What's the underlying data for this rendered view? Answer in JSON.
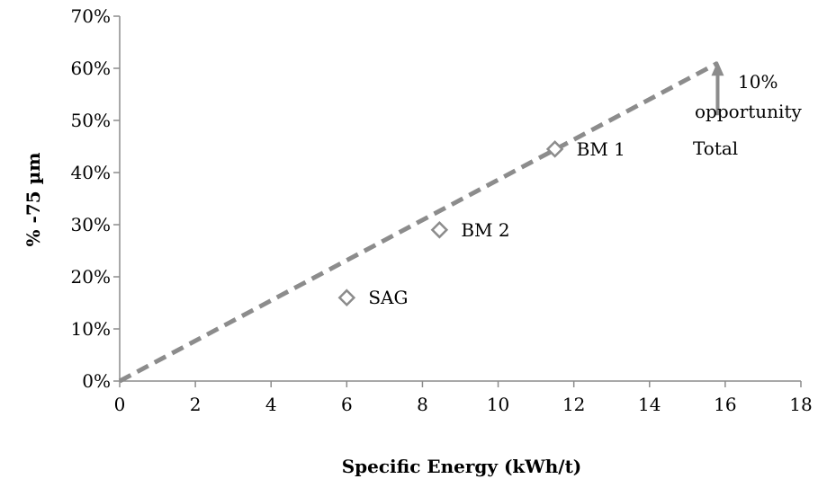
{
  "chart_data": {
    "type": "scatter",
    "title": "",
    "xlabel": "Specific Energy (kWh/t)",
    "ylabel": "% -75 µm",
    "xlim": [
      0,
      18
    ],
    "ylim": [
      0,
      0.7
    ],
    "x_ticks": [
      0,
      2,
      4,
      6,
      8,
      10,
      12,
      14,
      16,
      18
    ],
    "x_tick_labels": [
      "0",
      "2",
      "4",
      "6",
      "8",
      "10",
      "12",
      "14",
      "16",
      "18"
    ],
    "y_ticks": [
      0,
      0.1,
      0.2,
      0.3,
      0.4,
      0.5,
      0.6,
      0.7
    ],
    "y_tick_labels": [
      "0%",
      "10%",
      "20%",
      "30%",
      "40%",
      "50%",
      "60%",
      "70%"
    ],
    "grid": false,
    "legend": "none",
    "points": [
      {
        "label": "SAG",
        "x": 6.0,
        "y": 0.16
      },
      {
        "label": "BM 2",
        "x": 8.45,
        "y": 0.29
      },
      {
        "label": "BM 1",
        "x": 11.5,
        "y": 0.445
      }
    ],
    "trend_line": {
      "style": "dashed",
      "from": {
        "x": 0,
        "y": 0
      },
      "to": {
        "x": 15.8,
        "y": 0.61
      }
    },
    "opportunity": {
      "x": 15.8,
      "from_y": 0.51,
      "to_y": 0.61
    },
    "total_label": "Total",
    "opportunity_label_line1": "10%",
    "opportunity_label_line2": "opportunity",
    "colors": {
      "line": "#8c8c8c",
      "marker": "#8c8c8c",
      "axis": "#8c8c8c",
      "text": "#000000"
    }
  }
}
